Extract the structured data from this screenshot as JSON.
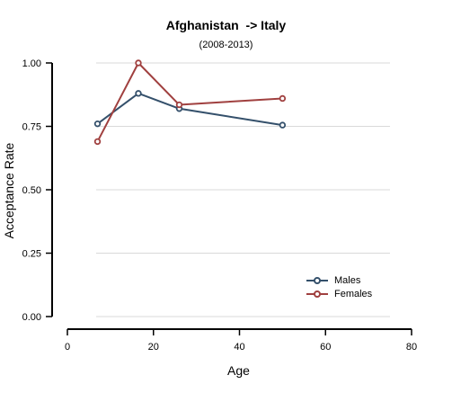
{
  "chart_data": {
    "type": "line",
    "title": "Afghanistan  -> Italy",
    "subtitle": "(2008-2013)",
    "xlabel": "Age",
    "ylabel": "Acceptance Rate",
    "xlim": [
      0,
      80
    ],
    "ylim": [
      0,
      1
    ],
    "xticks": [
      0,
      20,
      40,
      60,
      80
    ],
    "yticks": [
      0.0,
      0.25,
      0.5,
      0.75,
      1.0
    ],
    "xtick_labels": [
      "0",
      "20",
      "40",
      "60",
      "80"
    ],
    "ytick_labels": [
      "0.00",
      "0.25",
      "0.50",
      "0.75",
      "1.00"
    ],
    "grid": "horizontal",
    "legend_position": "bottom-right",
    "series": [
      {
        "name": "Males",
        "color": "#34506b",
        "x": [
          7,
          16.5,
          26,
          50
        ],
        "y": [
          0.76,
          0.88,
          0.82,
          0.755
        ]
      },
      {
        "name": "Females",
        "color": "#a0403f",
        "x": [
          7,
          16.5,
          26,
          50
        ],
        "y": [
          0.69,
          1.0,
          0.835,
          0.86
        ]
      }
    ]
  }
}
